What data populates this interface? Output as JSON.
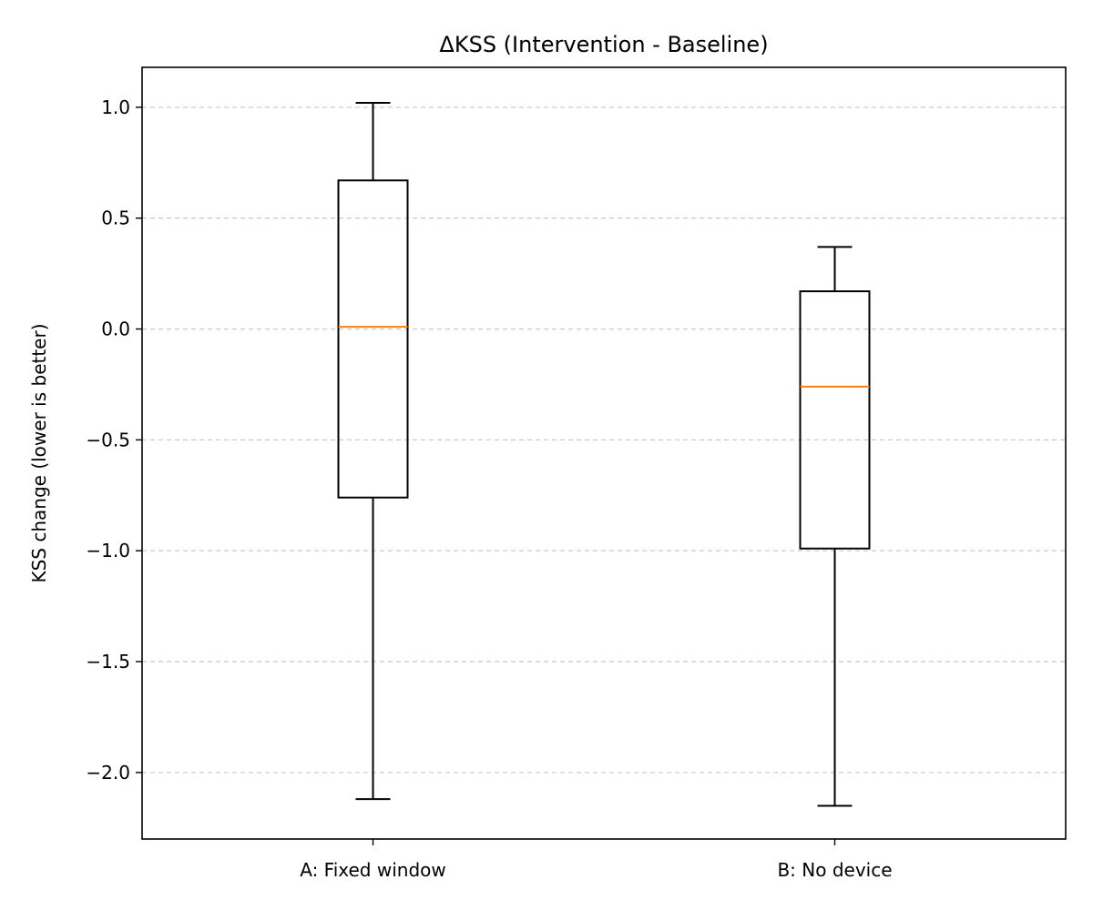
{
  "chart_data": {
    "type": "box",
    "title": "ΔKSS (Intervention - Baseline)",
    "xlabel": "",
    "ylabel": "KSS change (lower is better)",
    "ylim": [
      -2.3,
      1.18
    ],
    "yticks": [
      1.0,
      0.5,
      0.0,
      -0.5,
      -1.0,
      -1.5,
      -2.0
    ],
    "ytick_labels": [
      "1.0",
      "0.5",
      "0.0",
      "−0.5",
      "−1.0",
      "−1.5",
      "−2.0"
    ],
    "grid": {
      "axis": "y",
      "style": "dashed",
      "color": "#cccccc"
    },
    "categories": [
      "A: Fixed window",
      "B: No device"
    ],
    "boxes": [
      {
        "category": "A: Fixed window",
        "whisker_low": -2.12,
        "q1": -0.76,
        "median": 0.01,
        "q3": 0.67,
        "whisker_high": 1.02
      },
      {
        "category": "B: No device",
        "whisker_low": -2.15,
        "q1": -0.99,
        "median": -0.26,
        "q3": 0.17,
        "whisker_high": 0.37
      }
    ],
    "colors": {
      "box": "#000000",
      "median": "#ff7f0e",
      "grid": "#cccccc"
    }
  }
}
